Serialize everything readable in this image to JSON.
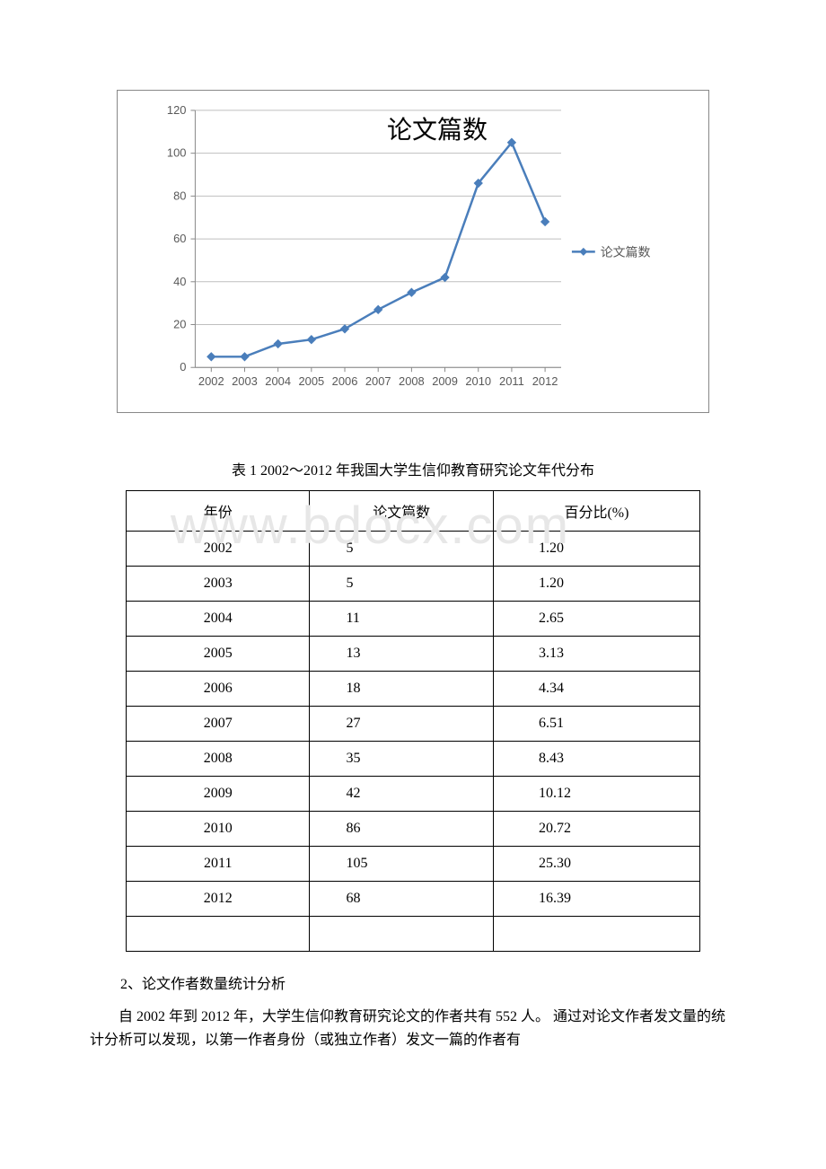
{
  "chart": {
    "type": "line",
    "title": "论文篇数",
    "title_fontsize": 28,
    "title_color": "#000000",
    "legend_label": "论文篇数",
    "legend_color": "#4a7ebb",
    "legend_marker": "diamond",
    "legend_fontsize": 14,
    "categories": [
      "2002",
      "2003",
      "2004",
      "2005",
      "2006",
      "2007",
      "2008",
      "2009",
      "2010",
      "2011",
      "2012"
    ],
    "values": [
      5,
      5,
      11,
      13,
      18,
      27,
      35,
      42,
      86,
      105,
      68
    ],
    "line_color": "#4a7ebb",
    "line_width": 2.5,
    "marker_fill": "#4a7ebb",
    "marker_size": 7,
    "marker_shape": "diamond",
    "ylim": [
      0,
      120
    ],
    "ytick_step": 20,
    "yticks": [
      0,
      20,
      40,
      60,
      80,
      100,
      120
    ],
    "axis_color": "#888888",
    "grid_color": "#bfbfbf",
    "grid_on": true,
    "tick_label_color": "#595959",
    "tick_label_fontsize": 13,
    "background_color": "#ffffff",
    "plot_border_color": "#888888"
  },
  "table_caption": "表 1 2002～2012 年我国大学生信仰教育研究论文年代分布",
  "table": {
    "columns": [
      "年份",
      "论文篇数",
      "百分比(%)"
    ],
    "rows": [
      [
        "2002",
        "5",
        "1.20"
      ],
      [
        "2003",
        "5",
        "1.20"
      ],
      [
        "2004",
        "11",
        "2.65"
      ],
      [
        "2005",
        "13",
        "3.13"
      ],
      [
        "2006",
        "18",
        "4.34"
      ],
      [
        "2007",
        "27",
        "6.51"
      ],
      [
        "2008",
        "35",
        "8.43"
      ],
      [
        "2009",
        "42",
        "10.12"
      ],
      [
        "2010",
        "86",
        "20.72"
      ],
      [
        "2011",
        "105",
        "25.30"
      ],
      [
        "2012",
        "68",
        "16.39"
      ],
      [
        "",
        "",
        ""
      ]
    ],
    "col_align": [
      "center",
      "left",
      "left"
    ],
    "border_color": "#000000",
    "font_size": 16
  },
  "section_heading": "2、论文作者数量统计分析",
  "body_paragraph": "自 2002 年到 2012 年，大学生信仰教育研究论文的作者共有 552 人。 通过对论文作者发文量的统计分析可以发现，以第一作者身份（或独立作者）发文一篇的作者有",
  "watermark_text": "www.bdocx.com"
}
